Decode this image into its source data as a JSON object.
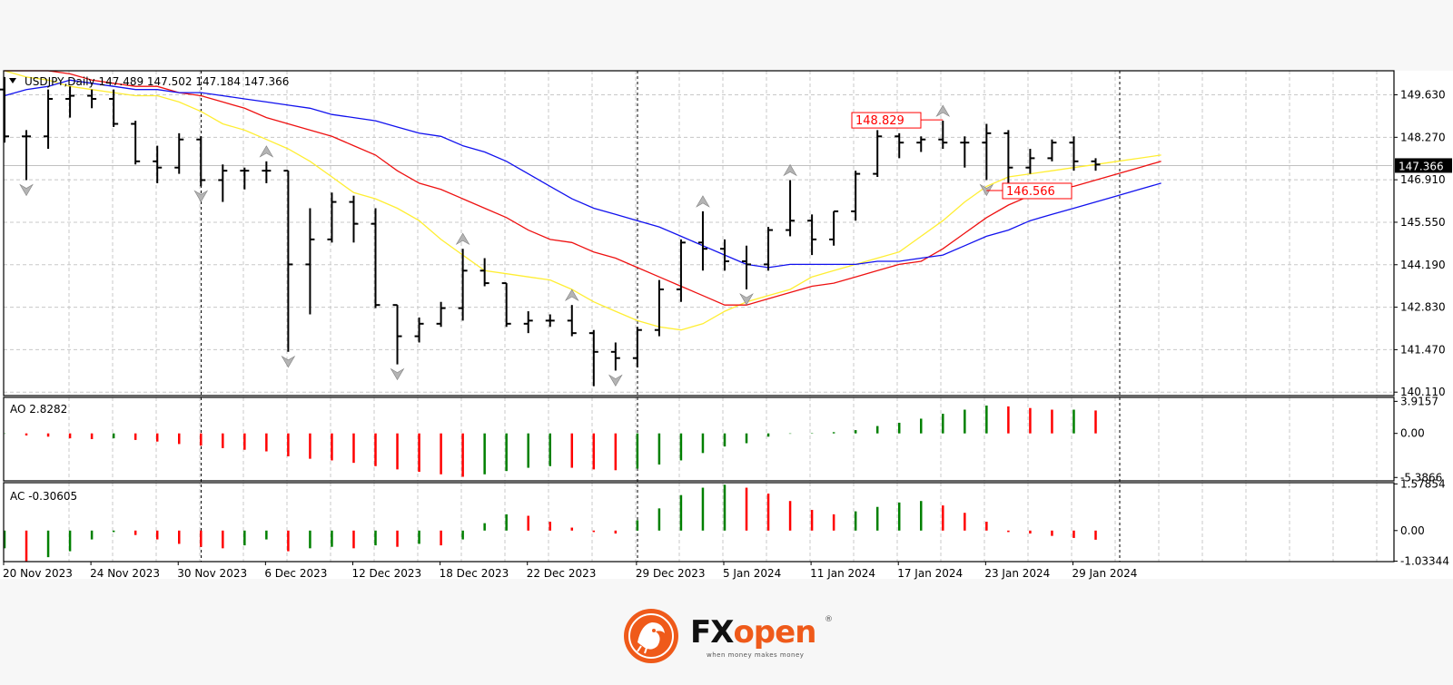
{
  "chart_data": {
    "type": "ohlc",
    "title": "USDJPY,Daily  147.489 147.502 147.184 147.366",
    "symbol": "USDJPY",
    "timeframe": "Daily",
    "current_price": "147.366",
    "ylim": [
      140.0,
      150.4
    ],
    "price_ticks": [
      "149.630",
      "148.270",
      "146.910",
      "145.550",
      "144.190",
      "142.830",
      "141.470",
      "140.110"
    ],
    "x_tick_labels": [
      "20 Nov 2023",
      "24 Nov 2023",
      "30 Nov 2023",
      "6 Dec 2023",
      "12 Dec 2023",
      "18 Dec 2023",
      "22 Dec 2023",
      "29 Dec 2023",
      "5 Jan 2024",
      "11 Jan 2024",
      "17 Jan 2024",
      "23 Jan 2024",
      "29 Jan 2024"
    ],
    "dates": [
      "20 Nov",
      "21 Nov",
      "22 Nov",
      "23 Nov",
      "24 Nov",
      "27 Nov",
      "28 Nov",
      "29 Nov",
      "30 Nov",
      "1 Dec",
      "4 Dec",
      "5 Dec",
      "6 Dec",
      "7 Dec",
      "8 Dec",
      "11 Dec",
      "12 Dec",
      "13 Dec",
      "14 Dec",
      "15 Dec",
      "18 Dec",
      "19 Dec",
      "20 Dec",
      "21 Dec",
      "22 Dec",
      "25 Dec",
      "26 Dec",
      "27 Dec",
      "28 Dec",
      "29 Dec",
      "2 Jan",
      "3 Jan",
      "4 Jan",
      "5 Jan",
      "8 Jan",
      "9 Jan",
      "10 Jan",
      "11 Jan",
      "12 Jan",
      "15 Jan",
      "16 Jan",
      "17 Jan",
      "18 Jan",
      "19 Jan",
      "22 Jan",
      "23 Jan",
      "24 Jan",
      "25 Jan",
      "26 Jan",
      "29 Jan",
      "30 Jan"
    ],
    "bars": [
      [
        149.8,
        150.2,
        148.1,
        148.3
      ],
      [
        148.3,
        148.5,
        146.9,
        148.3
      ],
      [
        148.3,
        149.8,
        147.9,
        149.5
      ],
      [
        149.5,
        149.9,
        148.9,
        149.6
      ],
      [
        149.6,
        149.8,
        149.2,
        149.5
      ],
      [
        149.5,
        149.8,
        148.6,
        148.7
      ],
      [
        148.7,
        148.8,
        147.4,
        147.5
      ],
      [
        147.5,
        148.0,
        146.8,
        147.3
      ],
      [
        147.3,
        148.4,
        147.1,
        148.2
      ],
      [
        148.2,
        148.3,
        146.7,
        146.9
      ],
      [
        146.9,
        147.4,
        146.2,
        147.2
      ],
      [
        147.2,
        147.3,
        146.6,
        147.2
      ],
      [
        147.2,
        147.5,
        146.8,
        147.2
      ],
      [
        147.2,
        147.2,
        141.4,
        144.2
      ],
      [
        144.2,
        146.0,
        142.6,
        145.0
      ],
      [
        145.0,
        146.5,
        144.9,
        146.2
      ],
      [
        146.2,
        146.4,
        144.9,
        145.5
      ],
      [
        145.5,
        146.0,
        142.8,
        142.9
      ],
      [
        142.9,
        142.9,
        141.0,
        141.9
      ],
      [
        141.9,
        142.5,
        141.7,
        142.3
      ],
      [
        142.3,
        143.0,
        142.2,
        142.8
      ],
      [
        142.8,
        144.7,
        142.4,
        144.0
      ],
      [
        144.0,
        144.4,
        143.5,
        143.6
      ],
      [
        143.6,
        143.6,
        142.2,
        142.3
      ],
      [
        142.3,
        142.7,
        142.0,
        142.4
      ],
      [
        142.4,
        142.6,
        142.2,
        142.4
      ],
      [
        142.4,
        142.9,
        141.9,
        142.0
      ],
      [
        142.0,
        142.1,
        140.3,
        141.4
      ],
      [
        141.4,
        141.7,
        140.8,
        141.2
      ],
      [
        141.2,
        142.2,
        140.9,
        142.1
      ],
      [
        142.1,
        143.7,
        141.9,
        143.4
      ],
      [
        143.4,
        145.0,
        143.0,
        144.9
      ],
      [
        144.9,
        145.9,
        144.0,
        144.7
      ],
      [
        144.7,
        145.0,
        144.0,
        144.3
      ],
      [
        144.3,
        144.8,
        143.4,
        144.2
      ],
      [
        144.2,
        145.4,
        144.0,
        145.3
      ],
      [
        145.3,
        146.9,
        145.1,
        145.6
      ],
      [
        145.6,
        145.8,
        144.5,
        145.0
      ],
      [
        145.0,
        145.9,
        144.8,
        145.9
      ],
      [
        145.9,
        147.2,
        145.6,
        147.1
      ],
      [
        147.1,
        148.5,
        147.0,
        148.3
      ],
      [
        148.3,
        148.4,
        147.6,
        148.1
      ],
      [
        148.1,
        148.3,
        147.8,
        148.2
      ],
      [
        148.2,
        148.8,
        147.9,
        148.1
      ],
      [
        148.1,
        148.3,
        147.3,
        148.1
      ],
      [
        148.1,
        148.7,
        146.9,
        148.4
      ],
      [
        148.4,
        148.5,
        146.6,
        147.3
      ],
      [
        147.3,
        147.9,
        147.1,
        147.6
      ],
      [
        147.6,
        148.2,
        147.5,
        148.1
      ],
      [
        148.1,
        148.3,
        147.2,
        147.5
      ],
      [
        147.5,
        147.6,
        147.2,
        147.4
      ]
    ],
    "moving_averages": [
      {
        "color": "#ffee33",
        "values": [
          150.5,
          150.2,
          150.1,
          149.9,
          149.8,
          149.7,
          149.6,
          149.6,
          149.4,
          149.1,
          148.7,
          148.5,
          148.2,
          147.9,
          147.5,
          147.0,
          146.5,
          146.3,
          146.0,
          145.6,
          145.0,
          144.5,
          144.0,
          143.9,
          143.8,
          143.7,
          143.4,
          143.0,
          142.7,
          142.4,
          142.2,
          142.1,
          142.3,
          142.7,
          143.0,
          143.2,
          143.4,
          143.8,
          144.0,
          144.2,
          144.4,
          144.6,
          145.1,
          145.6,
          146.2,
          146.7,
          147.0,
          147.1,
          147.2,
          147.3,
          147.4
        ]
      },
      {
        "color": "#ee1111",
        "values": [
          150.8,
          150.7,
          150.5,
          150.3,
          150.1,
          150.0,
          149.9,
          149.9,
          149.7,
          149.6,
          149.4,
          149.2,
          148.9,
          148.7,
          148.5,
          148.3,
          148.0,
          147.7,
          147.2,
          146.8,
          146.6,
          146.3,
          146.0,
          145.7,
          145.3,
          145.0,
          144.9,
          144.6,
          144.4,
          144.1,
          143.8,
          143.5,
          143.2,
          142.9,
          142.9,
          143.1,
          143.3,
          143.5,
          143.6,
          143.8,
          144.0,
          144.2,
          144.3,
          144.7,
          145.2,
          145.7,
          146.1,
          146.4,
          146.6,
          146.7,
          146.9
        ]
      },
      {
        "color": "#1111ee",
        "values": [
          149.6,
          149.8,
          149.9,
          150.1,
          150.0,
          149.9,
          149.8,
          149.8,
          149.7,
          149.7,
          149.6,
          149.5,
          149.4,
          149.3,
          149.2,
          149.0,
          148.9,
          148.8,
          148.6,
          148.4,
          148.3,
          148.0,
          147.8,
          147.5,
          147.1,
          146.7,
          146.3,
          146.0,
          145.8,
          145.6,
          145.4,
          145.1,
          144.8,
          144.5,
          144.2,
          144.1,
          144.2,
          144.2,
          144.2,
          144.2,
          144.3,
          144.3,
          144.4,
          144.5,
          144.8,
          145.1,
          145.3,
          145.6,
          145.8,
          146.0,
          146.2
        ]
      }
    ],
    "price_labels": [
      {
        "text": "148.829",
        "value": 148.829
      },
      {
        "text": "146.566",
        "value": 146.566
      }
    ],
    "fractals_up": [
      12,
      21,
      26,
      32,
      36,
      43
    ],
    "fractals_down": [
      1,
      9,
      13,
      18,
      28,
      34,
      45
    ],
    "period_separators": [
      "30 Nov 2023",
      "29 Dec 2023",
      "31 Jan 2024"
    ],
    "ao": {
      "label": "AO 2.8282",
      "ticks": [
        "3.9157",
        "0.00",
        "-5.3866"
      ],
      "ylim": [
        -5.8,
        4.4
      ],
      "values": [
        -0.05,
        -0.25,
        -0.4,
        -0.6,
        -0.7,
        -0.6,
        -0.8,
        -1.0,
        -1.3,
        -1.5,
        -1.8,
        -2.0,
        -2.2,
        -2.8,
        -3.1,
        -3.3,
        -3.6,
        -4.0,
        -4.4,
        -4.7,
        -5.0,
        -5.3,
        -5.0,
        -4.6,
        -4.2,
        -4.0,
        -4.2,
        -4.4,
        -4.5,
        -4.3,
        -3.8,
        -3.3,
        -2.4,
        -1.6,
        -1.2,
        -0.4,
        -0.05,
        0.05,
        0.15,
        0.4,
        0.9,
        1.3,
        1.8,
        2.4,
        2.9,
        3.4,
        3.3,
        3.1,
        2.9,
        2.9,
        2.8
      ]
    },
    "ac": {
      "label": "AC -0.30605",
      "ticks": [
        "1.57854",
        "0.00",
        "-1.03344"
      ],
      "ylim": [
        -1.05,
        1.62
      ],
      "values": [
        -0.6,
        -1.05,
        -0.9,
        -0.7,
        -0.3,
        -0.05,
        -0.15,
        -0.3,
        -0.45,
        -0.55,
        -0.6,
        -0.5,
        -0.3,
        -0.7,
        -0.6,
        -0.55,
        -0.6,
        -0.5,
        -0.55,
        -0.45,
        -0.5,
        -0.3,
        0.25,
        0.55,
        0.5,
        0.3,
        0.1,
        -0.05,
        -0.1,
        0.35,
        0.75,
        1.2,
        1.45,
        1.55,
        1.45,
        1.25,
        1.0,
        0.7,
        0.55,
        0.65,
        0.8,
        0.95,
        1.0,
        0.85,
        0.6,
        0.3,
        -0.05,
        -0.1,
        -0.18,
        -0.25,
        -0.31
      ]
    }
  },
  "logo": {
    "brand_fx": "FX",
    "brand_open": "open",
    "registered": "®",
    "tagline": "when money makes money"
  }
}
